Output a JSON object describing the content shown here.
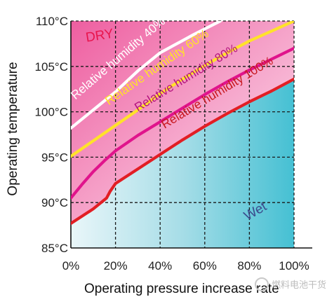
{
  "chart_data": {
    "type": "line",
    "title": "",
    "xlabel": "Operating pressure increase rate",
    "ylabel": "Operating temperature",
    "x_ticks": [
      "0%",
      "20%",
      "40%",
      "60%",
      "80%",
      "100%"
    ],
    "y_ticks": [
      "85°C",
      "90°C",
      "95°C",
      "100°C",
      "105°C",
      "110°C"
    ],
    "xlim": [
      0,
      100
    ],
    "ylim": [
      85,
      110
    ],
    "grid": true,
    "regions": [
      {
        "label": "DRY",
        "x": 7,
        "y": 107.7,
        "color": "#e8144c"
      },
      {
        "label": "Wet",
        "x": 79,
        "y": 88,
        "color": "#3b4a8c"
      }
    ],
    "series": [
      {
        "label": "Relative humidity 40%",
        "color": "#ffffff",
        "text_color": "#ffffff",
        "points": [
          [
            0,
            98.2
          ],
          [
            10,
            100.2
          ],
          [
            20,
            102.2
          ],
          [
            30,
            104.5
          ],
          [
            40,
            106.5
          ],
          [
            55,
            108.5
          ],
          [
            67,
            110
          ]
        ]
      },
      {
        "label": "Relative humidity 60%",
        "color": "#ffe22a",
        "text_color": "#ffe22a",
        "points": [
          [
            0,
            95.1
          ],
          [
            10,
            96.8
          ],
          [
            20,
            98.5
          ],
          [
            30,
            100.2
          ],
          [
            40,
            102
          ],
          [
            50,
            103.6
          ],
          [
            60,
            105.1
          ],
          [
            70,
            106.5
          ],
          [
            80,
            107.8
          ],
          [
            90,
            108.9
          ],
          [
            100,
            110
          ]
        ]
      },
      {
        "label": "Relative humidity 80%",
        "color": "#e0148c",
        "text_color": "#b3127e",
        "points": [
          [
            0,
            90.5
          ],
          [
            5,
            92
          ],
          [
            10,
            93.4
          ],
          [
            15,
            94.6
          ],
          [
            20,
            95.7
          ],
          [
            30,
            97.4
          ],
          [
            40,
            98.9
          ],
          [
            50,
            100.4
          ],
          [
            60,
            101.9
          ],
          [
            70,
            103.3
          ],
          [
            80,
            104.6
          ],
          [
            90,
            105.8
          ],
          [
            100,
            107
          ]
        ]
      },
      {
        "label": "Relative humidity 100%",
        "color": "#e21e24",
        "text_color": "#c8181f",
        "points": [
          [
            0,
            87.7
          ],
          [
            10,
            89.3
          ],
          [
            16,
            90.5
          ],
          [
            17.5,
            91.2
          ],
          [
            20,
            92.1
          ],
          [
            30,
            93.7
          ],
          [
            40,
            95.3
          ],
          [
            50,
            96.9
          ],
          [
            60,
            98.4
          ],
          [
            70,
            99.8
          ],
          [
            80,
            101.1
          ],
          [
            90,
            102.3
          ],
          [
            100,
            103.6
          ]
        ]
      }
    ]
  },
  "watermark": "燃料电池干货"
}
